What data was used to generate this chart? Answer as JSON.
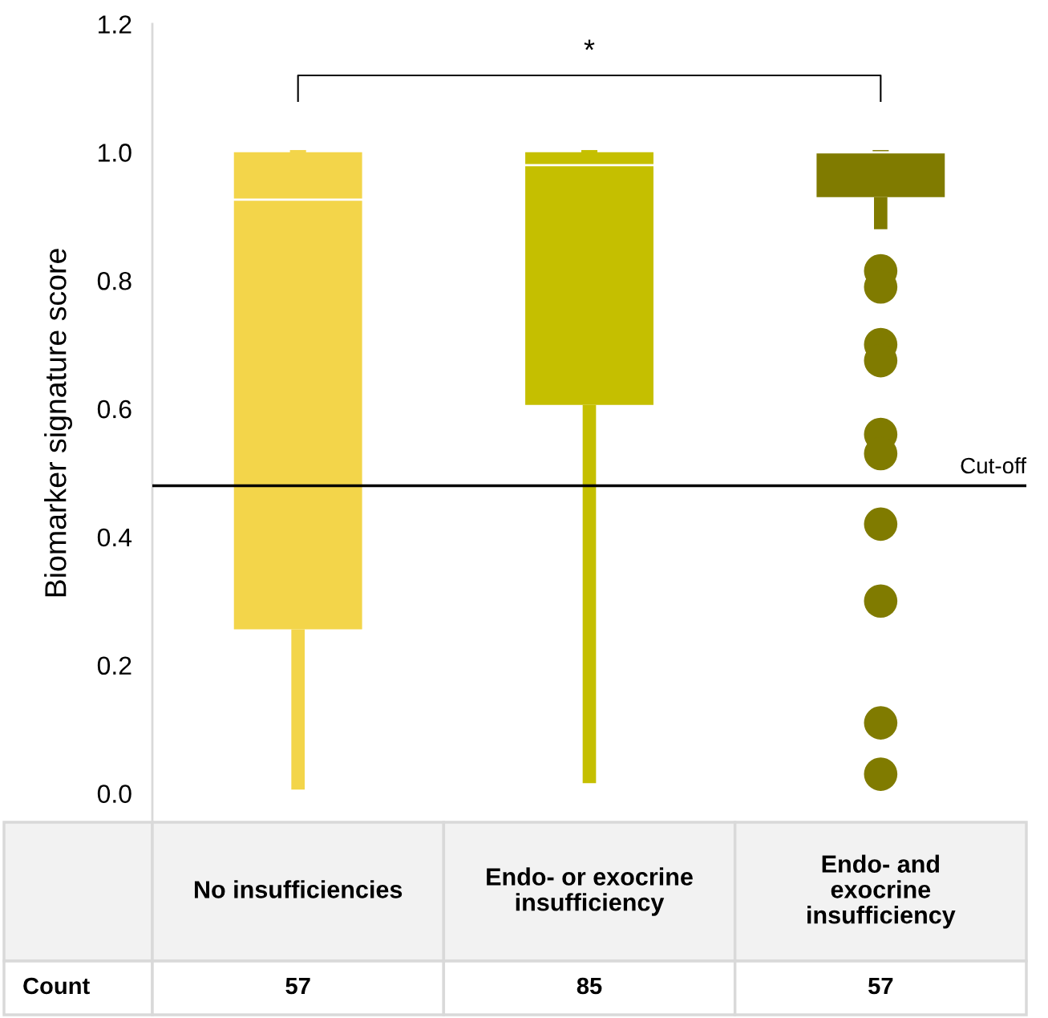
{
  "chart_data": {
    "type": "box",
    "ylabel": "Biomarker signature score",
    "categories": [
      "No insufficiencies",
      "Endo- or exocrine insufficiency",
      "Endo- and exocrine insufficiency"
    ],
    "colors": [
      "#f3d54a",
      "#c5bf00",
      "#807b00"
    ],
    "boxes": [
      {
        "low": 0.006,
        "q1": 0.256,
        "median": 0.926,
        "q3": 1.0,
        "high": 1.0
      },
      {
        "low": 0.016,
        "q1": 0.606,
        "median": 0.98,
        "q3": 1.0,
        "high": 1.0
      },
      {
        "low": 0.88,
        "q1": 0.93,
        "median": 1.0,
        "q3": 1.0,
        "high": 1.0,
        "outliers": [
          0.815,
          0.79,
          0.7,
          0.675,
          0.56,
          0.53,
          0.42,
          0.3,
          0.11,
          0.03
        ]
      }
    ],
    "ylim": [
      -0.045,
      1.2
    ],
    "yticks": [
      {
        "value": 0,
        "label": "0.0"
      },
      0.2,
      0.4,
      0.6,
      0.8,
      {
        "value": 1,
        "label": "1.0"
      },
      1.2
    ],
    "ref_lines": [
      {
        "axis": "y",
        "value": 0.48,
        "label": "Cut-off",
        "color": "#000000"
      }
    ],
    "annotations": [
      "*",
      "Count",
      "57",
      "85",
      "57"
    ],
    "grid": false
  }
}
